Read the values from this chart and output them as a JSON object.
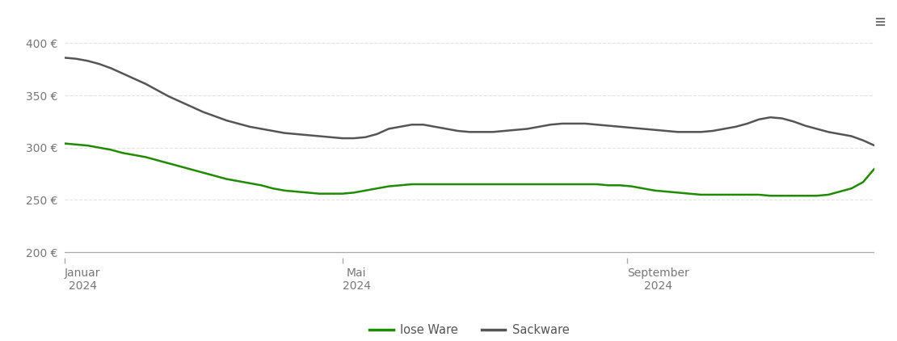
{
  "background_color": "#ffffff",
  "grid_color": "#dddddd",
  "ylim": [
    195,
    420
  ],
  "yticks": [
    200,
    250,
    300,
    350,
    400
  ],
  "ytick_labels": [
    "200 €",
    "250 €",
    "300 €",
    "350 €",
    "400 €"
  ],
  "xtick_positions": [
    0,
    120,
    243
  ],
  "xtick_labels": [
    "Januar\n2024",
    "Mai\n2024",
    "September\n2024"
  ],
  "legend_labels": [
    "lose Ware",
    "Sackware"
  ],
  "lose_ware_color": "#1f8c00",
  "sackware_color": "#555555",
  "lose_ware_x": [
    0,
    5,
    10,
    15,
    20,
    25,
    30,
    35,
    40,
    45,
    50,
    55,
    60,
    65,
    70,
    75,
    80,
    85,
    90,
    95,
    100,
    105,
    110,
    115,
    120,
    125,
    130,
    135,
    140,
    145,
    150,
    155,
    160,
    165,
    170,
    175,
    180,
    185,
    190,
    195,
    200,
    205,
    210,
    215,
    220,
    225,
    230,
    235,
    240,
    245,
    250,
    255,
    260,
    265,
    270,
    275,
    280,
    285,
    290,
    295,
    300,
    305,
    310,
    315,
    320,
    325,
    330,
    335,
    340,
    345,
    350
  ],
  "lose_ware_y": [
    304,
    303,
    302,
    300,
    298,
    295,
    293,
    291,
    288,
    285,
    282,
    279,
    276,
    273,
    270,
    268,
    266,
    264,
    261,
    259,
    258,
    257,
    256,
    256,
    256,
    257,
    259,
    261,
    263,
    264,
    265,
    265,
    265,
    265,
    265,
    265,
    265,
    265,
    265,
    265,
    265,
    265,
    265,
    265,
    265,
    265,
    265,
    264,
    264,
    263,
    261,
    259,
    258,
    257,
    256,
    255,
    255,
    255,
    255,
    255,
    255,
    254,
    254,
    254,
    254,
    254,
    255,
    258,
    261,
    267,
    280
  ],
  "sackware_x": [
    0,
    5,
    10,
    15,
    20,
    25,
    30,
    35,
    40,
    45,
    50,
    55,
    60,
    65,
    70,
    75,
    80,
    85,
    90,
    95,
    100,
    105,
    110,
    115,
    120,
    125,
    130,
    135,
    140,
    145,
    150,
    155,
    160,
    165,
    170,
    175,
    180,
    185,
    190,
    195,
    200,
    205,
    210,
    215,
    220,
    225,
    230,
    235,
    240,
    245,
    250,
    255,
    260,
    265,
    270,
    275,
    280,
    285,
    290,
    295,
    300,
    305,
    310,
    315,
    320,
    325,
    330,
    335,
    340,
    345,
    350
  ],
  "sackware_y": [
    386,
    385,
    383,
    380,
    376,
    371,
    366,
    361,
    355,
    349,
    344,
    339,
    334,
    330,
    326,
    323,
    320,
    318,
    316,
    314,
    313,
    312,
    311,
    310,
    309,
    309,
    310,
    313,
    318,
    320,
    322,
    322,
    320,
    318,
    316,
    315,
    315,
    315,
    316,
    317,
    318,
    320,
    322,
    323,
    323,
    323,
    322,
    321,
    320,
    319,
    318,
    317,
    316,
    315,
    315,
    315,
    316,
    318,
    320,
    323,
    327,
    329,
    328,
    325,
    321,
    318,
    315,
    313,
    311,
    307,
    302
  ]
}
